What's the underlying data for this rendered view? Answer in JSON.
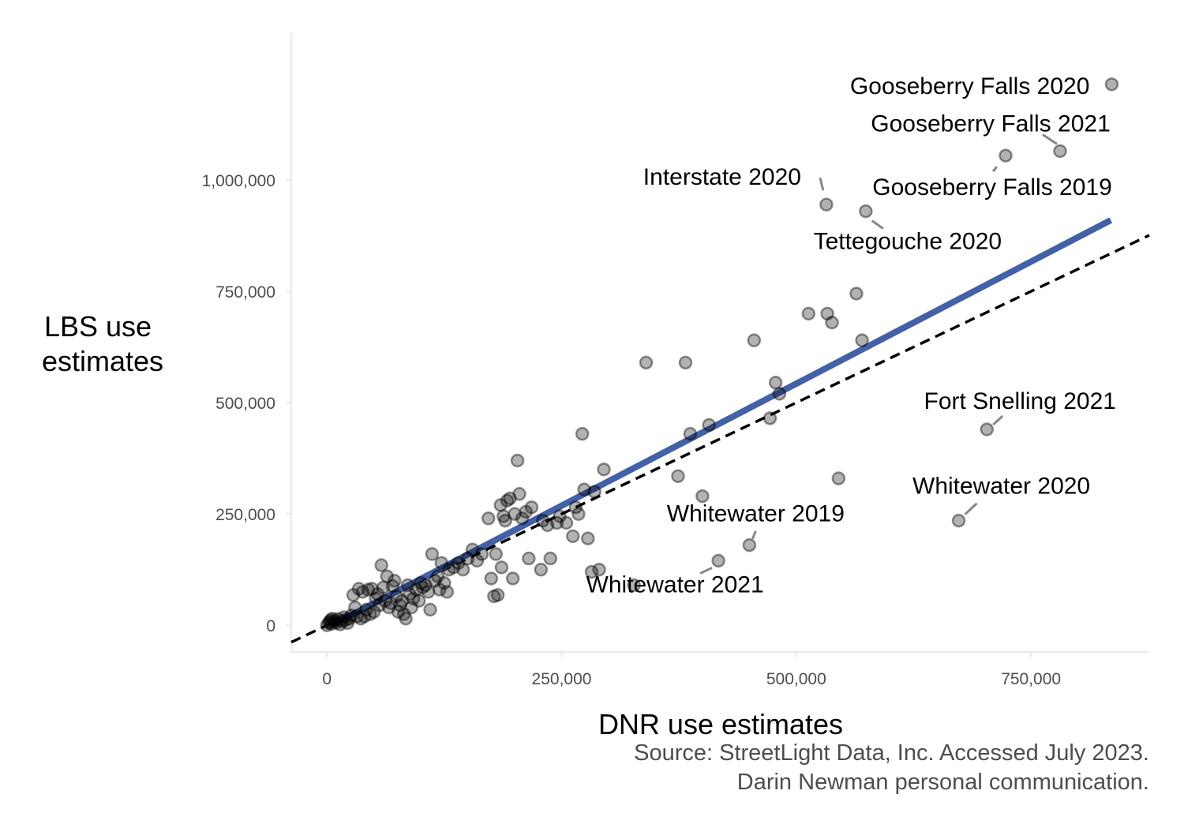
{
  "chart_data": {
    "type": "scatter",
    "xlabel": "DNR use estimates",
    "ylabel_lines": [
      "LBS use",
      "estimates"
    ],
    "caption_lines": [
      "Source: StreetLight Data, Inc. Accessed July 2023.",
      "Darin Newman personal communication."
    ],
    "xlim": [
      -38000,
      876000
    ],
    "ylim": [
      -60000,
      1330000
    ],
    "x_ticks": [
      0,
      250000,
      500000,
      750000
    ],
    "x_tick_labels": [
      "0",
      "250,000",
      "500,000",
      "750,000"
    ],
    "y_ticks": [
      0,
      250000,
      500000,
      750000,
      1000000
    ],
    "y_tick_labels": [
      "0",
      "250,000",
      "500,000",
      "750,000",
      "1,000,000"
    ],
    "grid": false,
    "colors": {
      "points": "#000000",
      "fit_line": "#4361a8",
      "identity_line": "#000000",
      "label_segment": "#888888"
    },
    "fit_line": {
      "style": "solid",
      "x": [
        5000,
        835000
      ],
      "y": [
        0,
        910000
      ]
    },
    "identity_line": {
      "style": "dashed",
      "x": [
        -38000,
        876000
      ],
      "y": [
        -38000,
        876000
      ]
    },
    "points": [
      [
        0,
        0
      ],
      [
        2000,
        5000
      ],
      [
        3000,
        8000
      ],
      [
        4000,
        12000
      ],
      [
        5000,
        3000
      ],
      [
        6000,
        15000
      ],
      [
        8000,
        10000
      ],
      [
        10000,
        6000
      ],
      [
        12000,
        14000
      ],
      [
        14000,
        2000
      ],
      [
        16000,
        9000
      ],
      [
        18000,
        18000
      ],
      [
        20000,
        12000
      ],
      [
        22000,
        5000
      ],
      [
        24000,
        15000
      ],
      [
        26000,
        22000
      ],
      [
        28000,
        68000
      ],
      [
        30000,
        40000
      ],
      [
        32000,
        20000
      ],
      [
        34000,
        82000
      ],
      [
        36000,
        15000
      ],
      [
        38000,
        75000
      ],
      [
        40000,
        20000
      ],
      [
        42000,
        35000
      ],
      [
        44000,
        80000
      ],
      [
        46000,
        25000
      ],
      [
        48000,
        82000
      ],
      [
        50000,
        30000
      ],
      [
        52000,
        60000
      ],
      [
        54000,
        70000
      ],
      [
        56000,
        45000
      ],
      [
        58000,
        135000
      ],
      [
        60000,
        85000
      ],
      [
        62000,
        55000
      ],
      [
        64000,
        110000
      ],
      [
        66000,
        40000
      ],
      [
        68000,
        50000
      ],
      [
        70000,
        88000
      ],
      [
        72000,
        100000
      ],
      [
        74000,
        65000
      ],
      [
        76000,
        30000
      ],
      [
        78000,
        45000
      ],
      [
        80000,
        55000
      ],
      [
        82000,
        25000
      ],
      [
        84000,
        15000
      ],
      [
        86000,
        90000
      ],
      [
        88000,
        70000
      ],
      [
        90000,
        40000
      ],
      [
        92000,
        60000
      ],
      [
        95000,
        80000
      ],
      [
        98000,
        55000
      ],
      [
        100000,
        95000
      ],
      [
        102000,
        85000
      ],
      [
        105000,
        90000
      ],
      [
        108000,
        75000
      ],
      [
        110000,
        35000
      ],
      [
        112000,
        160000
      ],
      [
        115000,
        100000
      ],
      [
        118000,
        110000
      ],
      [
        120000,
        80000
      ],
      [
        122000,
        140000
      ],
      [
        125000,
        95000
      ],
      [
        128000,
        75000
      ],
      [
        130000,
        125000
      ],
      [
        135000,
        130000
      ],
      [
        140000,
        140000
      ],
      [
        145000,
        125000
      ],
      [
        150000,
        150000
      ],
      [
        155000,
        170000
      ],
      [
        160000,
        145000
      ],
      [
        165000,
        160000
      ],
      [
        172000,
        240000
      ],
      [
        175000,
        105000
      ],
      [
        178000,
        65000
      ],
      [
        180000,
        160000
      ],
      [
        182000,
        68000
      ],
      [
        185000,
        270000
      ],
      [
        186000,
        130000
      ],
      [
        188000,
        245000
      ],
      [
        190000,
        235000
      ],
      [
        192000,
        280000
      ],
      [
        195000,
        285000
      ],
      [
        198000,
        105000
      ],
      [
        200000,
        250000
      ],
      [
        203000,
        370000
      ],
      [
        205000,
        295000
      ],
      [
        208000,
        240000
      ],
      [
        212000,
        255000
      ],
      [
        215000,
        150000
      ],
      [
        218000,
        265000
      ],
      [
        228000,
        125000
      ],
      [
        230000,
        235000
      ],
      [
        235000,
        225000
      ],
      [
        238000,
        150000
      ],
      [
        245000,
        230000
      ],
      [
        248000,
        245000
      ],
      [
        255000,
        230000
      ],
      [
        262000,
        200000
      ],
      [
        265000,
        265000
      ],
      [
        268000,
        250000
      ],
      [
        272000,
        430000
      ],
      [
        274000,
        305000
      ],
      [
        278000,
        195000
      ],
      [
        282000,
        120000
      ],
      [
        285000,
        300000
      ],
      [
        290000,
        125000
      ],
      [
        295000,
        350000
      ],
      [
        327000,
        90000
      ],
      [
        340000,
        590000
      ],
      [
        374000,
        335000
      ],
      [
        382000,
        590000
      ],
      [
        387000,
        430000
      ],
      [
        400000,
        290000
      ],
      [
        407000,
        450000
      ],
      [
        417000,
        145000
      ],
      [
        450000,
        180000
      ],
      [
        455000,
        640000
      ],
      [
        472000,
        465000
      ],
      [
        478000,
        545000
      ],
      [
        482000,
        520000
      ],
      [
        513000,
        700000
      ],
      [
        532000,
        945000
      ],
      [
        533000,
        700000
      ],
      [
        538000,
        680000
      ],
      [
        545000,
        330000
      ],
      [
        564000,
        745000
      ],
      [
        570000,
        640000
      ],
      [
        574000,
        930000
      ],
      [
        673000,
        235000
      ],
      [
        703000,
        440000
      ],
      [
        723000,
        1055000
      ],
      [
        781000,
        1065000
      ],
      [
        836000,
        1215000
      ]
    ],
    "labels": [
      {
        "text": "Gooseberry Falls 2020",
        "x": 836000,
        "y": 1215000
      },
      {
        "text": "Gooseberry Falls 2021",
        "x": 781000,
        "y": 1065000
      },
      {
        "text": "Interstate 2020",
        "x": 532000,
        "y": 945000
      },
      {
        "text": "Gooseberry Falls 2019",
        "x": 723000,
        "y": 1055000
      },
      {
        "text": "Tettegouche 2020",
        "x": 574000,
        "y": 930000
      },
      {
        "text": "Fort Snelling 2021",
        "x": 703000,
        "y": 440000
      },
      {
        "text": "Whitewater 2020",
        "x": 673000,
        "y": 235000
      },
      {
        "text": "Whitewater 2019",
        "x": 450000,
        "y": 180000
      },
      {
        "text": "Whitewater 2021",
        "x": 417000,
        "y": 145000
      }
    ]
  }
}
